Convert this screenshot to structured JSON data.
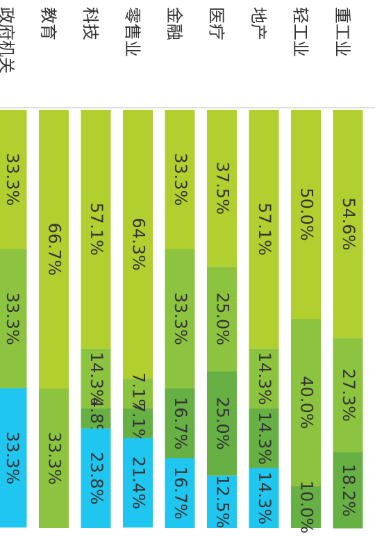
{
  "chart_data": {
    "type": "bar",
    "orientation": "stacked-100",
    "categories": [
      "重工业",
      "轻工业",
      "地产",
      "医疗",
      "金融",
      "零售业",
      "科技",
      "教育",
      "政府机关"
    ],
    "series": [
      {
        "values": [
          54.6,
          50.0,
          57.1,
          37.5,
          33.3,
          64.3,
          57.1,
          66.7,
          33.3
        ]
      },
      {
        "values": [
          27.3,
          40.0,
          14.3,
          25.0,
          33.3,
          7.1,
          14.3,
          0,
          33.3
        ]
      },
      {
        "values": [
          0,
          0,
          0,
          0,
          0,
          0,
          0,
          33.3,
          0
        ]
      },
      {
        "values": [
          18.2,
          10.0,
          14.3,
          25.0,
          16.7,
          7.1,
          4.8,
          0,
          0
        ]
      },
      {
        "values": [
          0,
          0,
          14.3,
          12.5,
          16.7,
          21.4,
          23.8,
          0,
          33.3
        ]
      }
    ],
    "data_labels": [
      [
        "54.6%",
        "27.3%",
        "",
        "18.2%",
        ""
      ],
      [
        "50.0%",
        "40.0%",
        "",
        "10.0%",
        ""
      ],
      [
        "57.1%",
        "14.3%",
        "",
        "14.3%",
        "14.3%"
      ],
      [
        "37.5%",
        "25.0%",
        "",
        "25.0%",
        "12.5%"
      ],
      [
        "33.3%",
        "33.3%",
        "",
        "16.7%",
        "16.7%"
      ],
      [
        "64.3%",
        "7.1%",
        "",
        "7.1%",
        "21.4%"
      ],
      [
        "57.1%",
        "14.3%",
        "",
        "4.8%",
        "23.8%"
      ],
      [
        "66.7%",
        "",
        "33.3%",
        "",
        ""
      ],
      [
        "33.3%",
        "33.3%",
        "",
        "",
        "33.3%"
      ]
    ],
    "xlim": [
      0,
      100
    ],
    "colors": [
      "#b1cf2e",
      "#8cc43f",
      "#8cc43f",
      "#66b044",
      "#1fc6f0"
    ]
  }
}
